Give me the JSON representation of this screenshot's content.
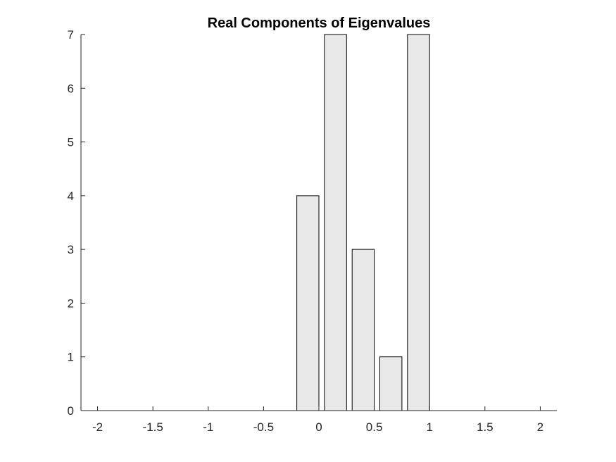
{
  "chart_data": {
    "type": "bar",
    "title": "Real Components of Eigenvalues",
    "xlabel": "",
    "ylabel": "",
    "bar_color": "#e8e8e8",
    "edge_color": "#000000",
    "bin_width": 0.2,
    "x": [
      -0.1,
      0.15,
      0.4,
      0.65,
      0.9
    ],
    "values": [
      4,
      7,
      3,
      1,
      7
    ],
    "xlim": [
      -2.15,
      2.15
    ],
    "ylim": [
      0,
      7
    ],
    "xticks": [
      -2,
      -1.5,
      -1,
      -0.5,
      0,
      0.5,
      1,
      1.5,
      2
    ],
    "xtick_labels": [
      "-2",
      "-1.5",
      "-1",
      "-0.5",
      "0",
      "0.5",
      "1",
      "1.5",
      "2"
    ],
    "yticks": [
      0,
      1,
      2,
      3,
      4,
      5,
      6,
      7
    ],
    "ytick_labels": [
      "0",
      "1",
      "2",
      "3",
      "4",
      "5",
      "6",
      "7"
    ],
    "grid": false,
    "legend": "none"
  }
}
